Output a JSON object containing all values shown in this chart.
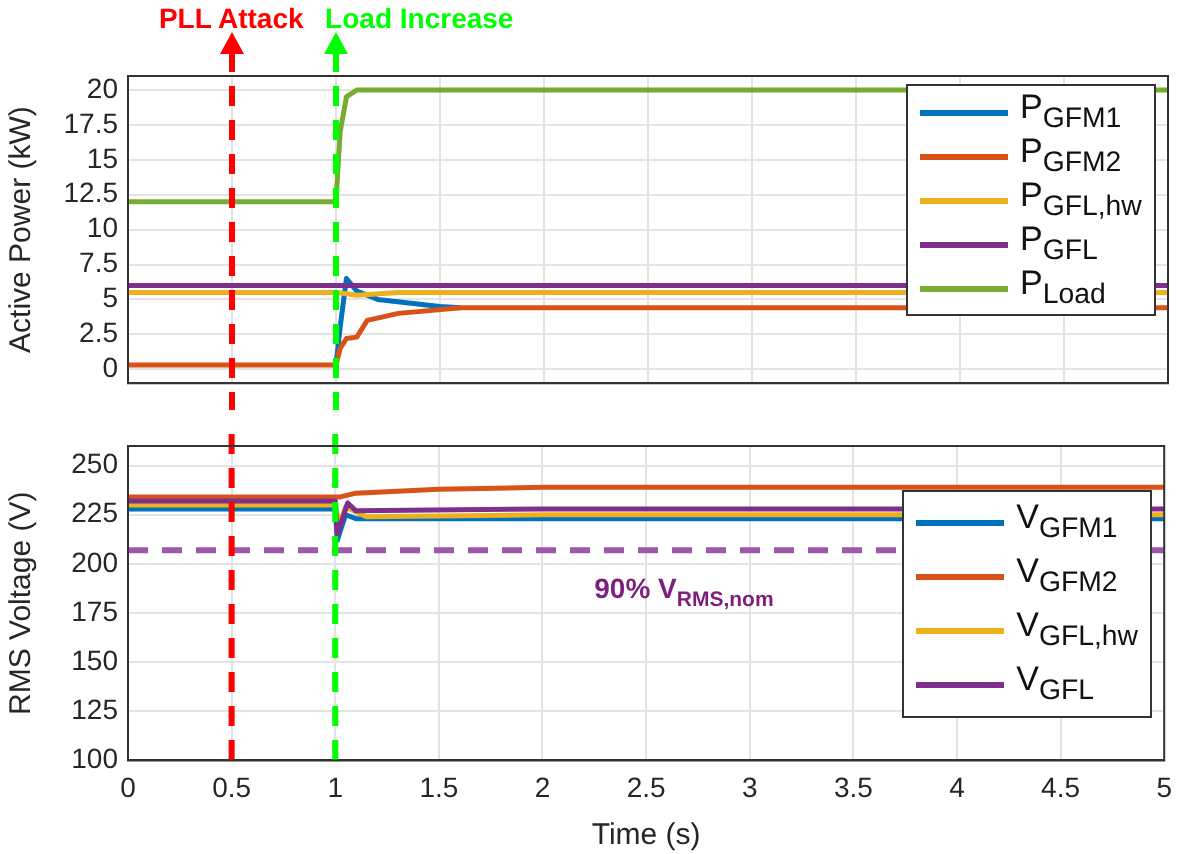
{
  "chart_data": [
    {
      "type": "line",
      "ylabel": "Active Power (kW)",
      "xlim": [
        0,
        5
      ],
      "xticks": [
        0,
        0.5,
        1,
        1.5,
        2,
        2.5,
        3,
        3.5,
        4,
        4.5,
        5
      ],
      "ylim": [
        -1,
        21
      ],
      "yticks": [
        0,
        2.5,
        5,
        7.5,
        10,
        12.5,
        15,
        17.5,
        20
      ],
      "grid": true,
      "legend": "top right",
      "tick_labels": "y",
      "series": [
        {
          "name": "P$_{GFM1}$",
          "color": "#0072bd",
          "x": [
            1,
            1.02,
            1.05,
            1.1,
            1.2,
            1.5,
            1.6
          ],
          "values": [
            0.3,
            3,
            6.5,
            5.6,
            5,
            4.5,
            4.4
          ]
        },
        {
          "name": "P$_{GFM2}$",
          "color": "#d95319",
          "x": [
            0,
            1,
            1.02,
            1.05,
            1.1,
            1.15,
            1.3,
            1.6,
            2,
            5
          ],
          "values": [
            0.3,
            0.3,
            1.5,
            2.2,
            2.3,
            3.5,
            4,
            4.4,
            4.4,
            4.4
          ]
        },
        {
          "name": "P$_{GFL,hw}$",
          "color": "#edb120",
          "x": [
            0,
            1,
            1.05,
            1.1,
            1.3,
            5
          ],
          "values": [
            5.5,
            5.5,
            5.4,
            5.3,
            5.5,
            5.5
          ]
        },
        {
          "name": "P$_{GFL}$",
          "color": "#7e2f8e",
          "x": [
            0,
            5
          ],
          "values": [
            6,
            6
          ]
        },
        {
          "name": "P$_{Load}$",
          "color": "#77ac30",
          "x": [
            0,
            1,
            1.02,
            1.05,
            1.1,
            5
          ],
          "values": [
            12,
            12,
            17,
            19.5,
            20,
            20
          ]
        }
      ],
      "ref_lines": [
        {
          "axis": "x",
          "value": 0.5,
          "label": "PLL Attack",
          "color": "#ff0000",
          "line_style": "dashed"
        },
        {
          "axis": "x",
          "value": 1,
          "label": "Load Increase",
          "color": "#00ff00",
          "line_style": "dashed"
        }
      ]
    },
    {
      "type": "line",
      "xlabel": "Time (s)",
      "ylabel": "RMS Voltage (V)",
      "xlim": [
        0,
        5
      ],
      "xticks": [
        0,
        0.5,
        1,
        1.5,
        2,
        2.5,
        3,
        3.5,
        4,
        4.5,
        5
      ],
      "ylim": [
        100,
        260
      ],
      "yticks": [
        100,
        125,
        150,
        175,
        200,
        225,
        250
      ],
      "grid": true,
      "legend": "right",
      "series": [
        {
          "name": "V$_{GFM1}$",
          "color": "#0072bd",
          "x": [
            0,
            1,
            1.01,
            1.05,
            1.1,
            2,
            5
          ],
          "values": [
            228,
            228,
            212,
            225,
            223,
            223,
            223
          ]
        },
        {
          "name": "V$_{GFM2}$",
          "color": "#d95319",
          "x": [
            0,
            1,
            1.02,
            1.1,
            1.5,
            2,
            5
          ],
          "values": [
            234,
            234,
            234,
            236,
            238,
            239,
            239
          ]
        },
        {
          "name": "V$_{GFL,hw}$",
          "color": "#edb120",
          "x": [
            0,
            1,
            1.02,
            1.05,
            1.15,
            2,
            5
          ],
          "values": [
            230,
            230,
            220,
            229,
            224,
            225,
            225
          ]
        },
        {
          "name": "V$_{GFL}$",
          "color": "#7e2f8e",
          "x": [
            0,
            1,
            1.01,
            1.06,
            1.1,
            2,
            5
          ],
          "values": [
            232,
            232,
            215,
            231,
            227,
            228,
            228
          ]
        }
      ],
      "ref_lines": [
        {
          "axis": "y",
          "value": 207,
          "label": "90% V$_{RMS,nom}$",
          "color": "#9b59a8",
          "line_style": "dashed"
        },
        {
          "axis": "x",
          "value": 0.5,
          "color": "#ff0000",
          "line_style": "dashed"
        },
        {
          "axis": "x",
          "value": 1,
          "color": "#00ff00",
          "line_style": "dashed"
        }
      ]
    }
  ]
}
